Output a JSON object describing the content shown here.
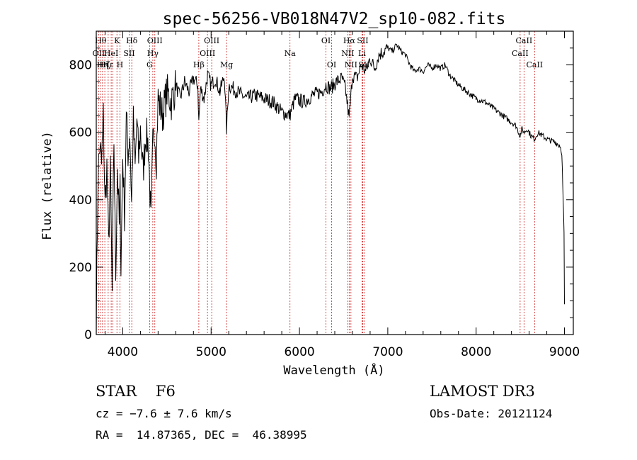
{
  "chart_data": {
    "type": "line",
    "title": "spec-56256-VB018N47V2_sp10-082.fits",
    "xlabel": "Wavelength (Å)",
    "ylabel": "Flux (relative)",
    "xlim": [
      3700,
      9100
    ],
    "ylim": [
      0,
      900
    ],
    "xticks": [
      4000,
      5000,
      6000,
      7000,
      8000,
      9000
    ],
    "yticks": [
      0,
      200,
      400,
      600,
      800
    ],
    "grid": false,
    "series": [
      {
        "x": [
          3700,
          3720,
          3740,
          3760,
          3780,
          3800,
          3820,
          3840,
          3860,
          3880,
          3900,
          3920,
          3940,
          3960,
          3970,
          3980,
          4000,
          4020,
          4040,
          4060,
          4080,
          4100,
          4120,
          4140,
          4160,
          4180,
          4200,
          4230,
          4260,
          4290,
          4320,
          4340,
          4360,
          4380,
          4400,
          4450,
          4500,
          4550,
          4600,
          4650,
          4700,
          4750,
          4800,
          4850,
          4861,
          4880,
          4920,
          4960,
          5000,
          5050,
          5100,
          5150,
          5175,
          5200,
          5250,
          5300,
          5400,
          5500,
          5600,
          5700,
          5800,
          5890,
          5950,
          6050,
          6150,
          6250,
          6300,
          6350,
          6420,
          6480,
          6520,
          6563,
          6600,
          6650,
          6700,
          6750,
          6800,
          6850,
          6900,
          6950,
          7000,
          7050,
          7100,
          7150,
          7200,
          7250,
          7300,
          7350,
          7400,
          7450,
          7500,
          7550,
          7600,
          7650,
          7700,
          7800,
          7900,
          8000,
          8100,
          8200,
          8300,
          8400,
          8450,
          8498,
          8520,
          8542,
          8580,
          8620,
          8662,
          8700,
          8800,
          8900,
          8950,
          8970,
          8985,
          8995,
          9000
        ],
        "y": [
          30,
          480,
          560,
          500,
          650,
          380,
          500,
          260,
          480,
          120,
          580,
          180,
          500,
          320,
          430,
          200,
          530,
          360,
          640,
          540,
          600,
          390,
          630,
          490,
          640,
          520,
          610,
          480,
          600,
          560,
          330,
          560,
          620,
          520,
          700,
          650,
          720,
          690,
          740,
          700,
          750,
          720,
          760,
          740,
          630,
          730,
          700,
          770,
          740,
          760,
          720,
          770,
          610,
          740,
          730,
          720,
          700,
          710,
          700,
          690,
          660,
          650,
          700,
          690,
          710,
          720,
          740,
          730,
          750,
          760,
          730,
          640,
          770,
          760,
          800,
          780,
          820,
          790,
          830,
          840,
          850,
          840,
          860,
          840,
          830,
          800,
          780,
          790,
          780,
          800,
          790,
          800,
          790,
          800,
          770,
          740,
          720,
          700,
          690,
          670,
          650,
          630,
          620,
          590,
          610,
          600,
          610,
          590,
          580,
          600,
          580,
          570,
          560,
          540,
          400,
          300,
          90
        ]
      }
    ],
    "lines": [
      {
        "wl": 3727,
        "label": "OII",
        "row": 2
      },
      {
        "wl": 3750,
        "label": "Hθ",
        "row": 1
      },
      {
        "wl": 3771,
        "label": "Hη",
        "row": 3
      },
      {
        "wl": 3797,
        "label": "Hζ",
        "row": 3
      },
      {
        "wl": 3835,
        "label": "Hε",
        "row": 3
      },
      {
        "wl": 3869,
        "label": "HeI",
        "row": 2
      },
      {
        "wl": 3889,
        "label": "",
        "row": 2
      },
      {
        "wl": 3934,
        "label": "K",
        "row": 1
      },
      {
        "wl": 3968,
        "label": "H",
        "row": 3
      },
      {
        "wl": 4072,
        "label": "SII",
        "row": 2
      },
      {
        "wl": 4102,
        "label": "Hδ",
        "row": 1
      },
      {
        "wl": 4304,
        "label": "G",
        "row": 3
      },
      {
        "wl": 4340,
        "label": "Hγ",
        "row": 2
      },
      {
        "wl": 4363,
        "label": "OIII",
        "row": 1
      },
      {
        "wl": 4861,
        "label": "Hβ",
        "row": 3
      },
      {
        "wl": 4959,
        "label": "OIII",
        "row": 2
      },
      {
        "wl": 5007,
        "label": "OIII",
        "row": 1
      },
      {
        "wl": 5175,
        "label": "Mg",
        "row": 3
      },
      {
        "wl": 5893,
        "label": "Na",
        "row": 2
      },
      {
        "wl": 6300,
        "label": "OI",
        "row": 1
      },
      {
        "wl": 6364,
        "label": "OI",
        "row": 3
      },
      {
        "wl": 6548,
        "label": "NII",
        "row": 2
      },
      {
        "wl": 6563,
        "label": "Hα",
        "row": 1
      },
      {
        "wl": 6583,
        "label": "NII",
        "row": 3
      },
      {
        "wl": 6708,
        "label": "Li",
        "row": 2
      },
      {
        "wl": 6716,
        "label": "SII",
        "row": 1
      },
      {
        "wl": 6731,
        "label": "SII",
        "row": 3
      },
      {
        "wl": 8498,
        "label": "CaII",
        "row": 2
      },
      {
        "wl": 8542,
        "label": "CaII",
        "row": 1
      },
      {
        "wl": 8662,
        "label": "CaII",
        "row": 3
      }
    ]
  },
  "info": {
    "class_line": "STAR    F6",
    "survey": "LAMOST DR3",
    "cz": "cz = −7.6 ± 7.6 km/s",
    "obs_date": "Obs-Date: 20121124",
    "coords": "RA =  14.87365, DEC =  46.38995"
  }
}
